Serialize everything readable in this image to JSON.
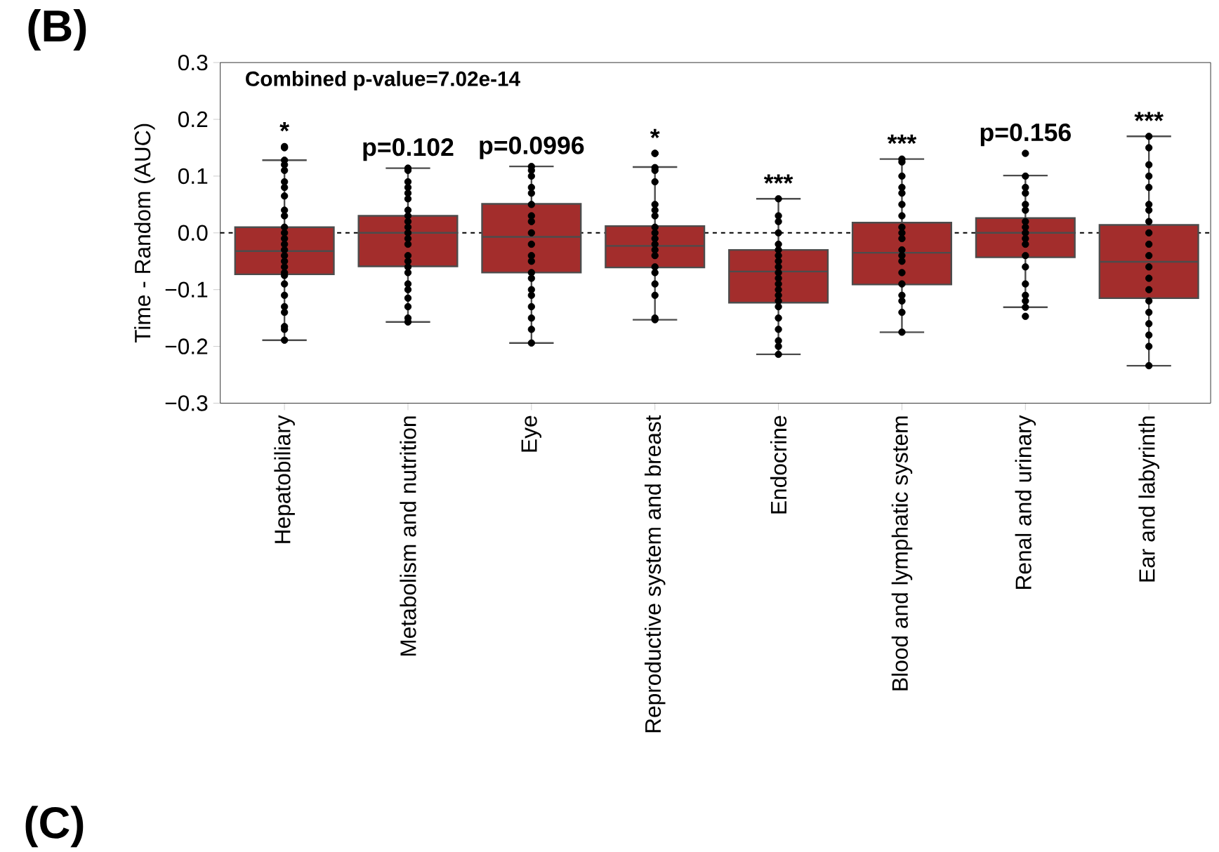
{
  "chart_data": {
    "type": "box",
    "ylabel": "Time - Random (AUC)",
    "categories": [
      "Hepatobiliary",
      "Metabolism and nutrition",
      "Eye",
      "Reproductive system and breast",
      "Endocrine",
      "Blood and lymphatic system",
      "Renal and urinary",
      "Ear and labyrinth"
    ],
    "ylim": [
      -0.3,
      0.3
    ],
    "yticks": [
      {
        "value": -0.3,
        "label": "−0.3"
      },
      {
        "value": -0.2,
        "label": "−0.2"
      },
      {
        "value": -0.1,
        "label": "−0.1"
      },
      {
        "value": 0,
        "label": "0.0"
      },
      {
        "value": 0.1,
        "label": "0.1"
      },
      {
        "value": 0.2,
        "label": "0.2"
      },
      {
        "value": 0.3,
        "label": "0.3"
      }
    ],
    "grid": false,
    "series": [
      {
        "color": "#a32d2c",
        "boxes": [
          {
            "low": -0.189,
            "q1": -0.073,
            "median": -0.032,
            "q3": 0.01,
            "high": 0.128
          },
          {
            "low": -0.157,
            "q1": -0.059,
            "median": 0.0,
            "q3": 0.03,
            "high": 0.114
          },
          {
            "low": -0.194,
            "q1": -0.07,
            "median": -0.007,
            "q3": 0.051,
            "high": 0.117
          },
          {
            "low": -0.153,
            "q1": -0.061,
            "median": -0.023,
            "q3": 0.012,
            "high": 0.116
          },
          {
            "low": -0.214,
            "q1": -0.123,
            "median": -0.068,
            "q3": -0.03,
            "high": 0.06
          },
          {
            "low": -0.175,
            "q1": -0.091,
            "median": -0.035,
            "q3": 0.018,
            "high": 0.13
          },
          {
            "low": -0.131,
            "q1": -0.043,
            "median": 0.0,
            "q3": 0.026,
            "high": 0.101
          },
          {
            "low": -0.234,
            "q1": -0.115,
            "median": -0.051,
            "q3": 0.014,
            "high": 0.17
          }
        ]
      },
      {
        "type": "scatter",
        "color": "#000000",
        "marker": "circle",
        "x": [
          "Hepatobiliary",
          "Hepatobiliary",
          "Hepatobiliary",
          "Hepatobiliary",
          "Hepatobiliary",
          "Hepatobiliary",
          "Hepatobiliary",
          "Hepatobiliary",
          "Hepatobiliary",
          "Hepatobiliary",
          "Hepatobiliary",
          "Hepatobiliary",
          "Hepatobiliary",
          "Hepatobiliary",
          "Hepatobiliary",
          "Hepatobiliary",
          "Hepatobiliary",
          "Hepatobiliary",
          "Hepatobiliary",
          "Hepatobiliary",
          "Hepatobiliary",
          "Hepatobiliary",
          "Hepatobiliary",
          "Hepatobiliary",
          "Hepatobiliary",
          "Hepatobiliary",
          "Hepatobiliary",
          "Metabolism and nutrition",
          "Metabolism and nutrition",
          "Metabolism and nutrition",
          "Metabolism and nutrition",
          "Metabolism and nutrition",
          "Metabolism and nutrition",
          "Metabolism and nutrition",
          "Metabolism and nutrition",
          "Metabolism and nutrition",
          "Metabolism and nutrition",
          "Metabolism and nutrition",
          "Metabolism and nutrition",
          "Metabolism and nutrition",
          "Metabolism and nutrition",
          "Metabolism and nutrition",
          "Metabolism and nutrition",
          "Metabolism and nutrition",
          "Metabolism and nutrition",
          "Metabolism and nutrition",
          "Metabolism and nutrition",
          "Metabolism and nutrition",
          "Metabolism and nutrition",
          "Metabolism and nutrition",
          "Eye",
          "Eye",
          "Eye",
          "Eye",
          "Eye",
          "Eye",
          "Eye",
          "Eye",
          "Eye",
          "Eye",
          "Eye",
          "Eye",
          "Eye",
          "Eye",
          "Eye",
          "Eye",
          "Eye",
          "Eye",
          "Eye",
          "Eye",
          "Reproductive system and breast",
          "Reproductive system and breast",
          "Reproductive system and breast",
          "Reproductive system and breast",
          "Reproductive system and breast",
          "Reproductive system and breast",
          "Reproductive system and breast",
          "Reproductive system and breast",
          "Reproductive system and breast",
          "Reproductive system and breast",
          "Reproductive system and breast",
          "Reproductive system and breast",
          "Reproductive system and breast",
          "Reproductive system and breast",
          "Reproductive system and breast",
          "Reproductive system and breast",
          "Reproductive system and breast",
          "Reproductive system and breast",
          "Reproductive system and breast",
          "Reproductive system and breast",
          "Endocrine",
          "Endocrine",
          "Endocrine",
          "Endocrine",
          "Endocrine",
          "Endocrine",
          "Endocrine",
          "Endocrine",
          "Endocrine",
          "Endocrine",
          "Endocrine",
          "Endocrine",
          "Endocrine",
          "Endocrine",
          "Endocrine",
          "Endocrine",
          "Endocrine",
          "Endocrine",
          "Endocrine",
          "Endocrine",
          "Endocrine",
          "Blood and lymphatic system",
          "Blood and lymphatic system",
          "Blood and lymphatic system",
          "Blood and lymphatic system",
          "Blood and lymphatic system",
          "Blood and lymphatic system",
          "Blood and lymphatic system",
          "Blood and lymphatic system",
          "Blood and lymphatic system",
          "Blood and lymphatic system",
          "Blood and lymphatic system",
          "Blood and lymphatic system",
          "Blood and lymphatic system",
          "Blood and lymphatic system",
          "Blood and lymphatic system",
          "Blood and lymphatic system",
          "Blood and lymphatic system",
          "Blood and lymphatic system",
          "Blood and lymphatic system",
          "Renal and urinary",
          "Renal and urinary",
          "Renal and urinary",
          "Renal and urinary",
          "Renal and urinary",
          "Renal and urinary",
          "Renal and urinary",
          "Renal and urinary",
          "Renal and urinary",
          "Renal and urinary",
          "Renal and urinary",
          "Renal and urinary",
          "Renal and urinary",
          "Renal and urinary",
          "Renal and urinary",
          "Renal and urinary",
          "Renal and urinary",
          "Renal and urinary",
          "Ear and labyrinth",
          "Ear and labyrinth",
          "Ear and labyrinth",
          "Ear and labyrinth",
          "Ear and labyrinth",
          "Ear and labyrinth",
          "Ear and labyrinth",
          "Ear and labyrinth",
          "Ear and labyrinth",
          "Ear and labyrinth",
          "Ear and labyrinth",
          "Ear and labyrinth",
          "Ear and labyrinth",
          "Ear and labyrinth",
          "Ear and labyrinth",
          "Ear and labyrinth",
          "Ear and labyrinth",
          "Ear and labyrinth",
          "Ear and labyrinth",
          "Ear and labyrinth"
        ],
        "values": [
          0.15,
          0.152,
          0.128,
          0.12,
          0.11,
          0.09,
          0.08,
          0.065,
          0.04,
          0.03,
          0.01,
          0.0,
          -0.01,
          -0.02,
          -0.03,
          -0.04,
          -0.05,
          -0.06,
          -0.07,
          -0.075,
          -0.09,
          -0.11,
          -0.13,
          -0.14,
          -0.165,
          -0.17,
          -0.189,
          0.114,
          0.11,
          0.09,
          0.08,
          0.07,
          0.06,
          0.04,
          0.03,
          0.02,
          0.01,
          0.0,
          -0.01,
          -0.02,
          -0.04,
          -0.05,
          -0.06,
          -0.07,
          -0.09,
          -0.1,
          -0.115,
          -0.13,
          -0.15,
          -0.157,
          0.117,
          0.11,
          0.1,
          0.08,
          0.07,
          0.05,
          0.03,
          0.02,
          0.0,
          -0.02,
          -0.04,
          -0.05,
          -0.07,
          -0.08,
          -0.1,
          -0.11,
          -0.13,
          -0.15,
          -0.17,
          -0.194,
          0.14,
          0.14,
          0.115,
          0.11,
          0.09,
          0.05,
          0.04,
          0.03,
          0.01,
          0.0,
          -0.01,
          -0.02,
          -0.03,
          -0.04,
          -0.06,
          -0.07,
          -0.09,
          -0.11,
          -0.15,
          -0.153,
          0.06,
          0.03,
          0.02,
          0.0,
          -0.02,
          -0.03,
          -0.04,
          -0.05,
          -0.06,
          -0.07,
          -0.08,
          -0.09,
          -0.1,
          -0.11,
          -0.12,
          -0.13,
          -0.15,
          -0.17,
          -0.19,
          -0.2,
          -0.214,
          0.13,
          0.125,
          0.1,
          0.08,
          0.07,
          0.05,
          0.03,
          0.01,
          0.0,
          -0.01,
          -0.03,
          -0.04,
          -0.05,
          -0.07,
          -0.09,
          -0.11,
          -0.12,
          -0.14,
          -0.175,
          0.14,
          0.1,
          0.08,
          0.07,
          0.05,
          0.04,
          0.02,
          0.01,
          0.0,
          -0.01,
          -0.02,
          -0.04,
          -0.06,
          -0.09,
          -0.11,
          -0.12,
          -0.131,
          -0.147,
          0.17,
          0.15,
          0.12,
          0.1,
          0.08,
          0.05,
          0.04,
          0.02,
          0.0,
          -0.02,
          -0.04,
          -0.06,
          -0.08,
          -0.1,
          -0.12,
          -0.14,
          -0.16,
          -0.18,
          -0.2,
          -0.234
        ]
      }
    ],
    "ref_lines": [
      {
        "axis": "y",
        "value": 0,
        "line_style": "dashed",
        "color": "#000000"
      }
    ],
    "annotations": [
      "(B)",
      "Combined p-value=7.02e-14",
      "(C)",
      {
        "text": "*",
        "x": "Hepatobiliary",
        "y": 0.152
      },
      {
        "text": "p=0.102",
        "x": "Metabolism and nutrition",
        "y": 0.114
      },
      {
        "text": "p=0.0996",
        "x": "Eye",
        "y": 0.117
      },
      {
        "text": "*",
        "x": "Reproductive system and breast",
        "y": 0.14
      },
      {
        "text": "***",
        "x": "Endocrine",
        "y": 0.06
      },
      {
        "text": "***",
        "x": "Blood and lymphatic system",
        "y": 0.13
      },
      {
        "text": "p=0.156",
        "x": "Renal and urinary",
        "y": 0.14
      },
      {
        "text": "***",
        "x": "Ear and labyrinth",
        "y": 0.17
      }
    ]
  }
}
